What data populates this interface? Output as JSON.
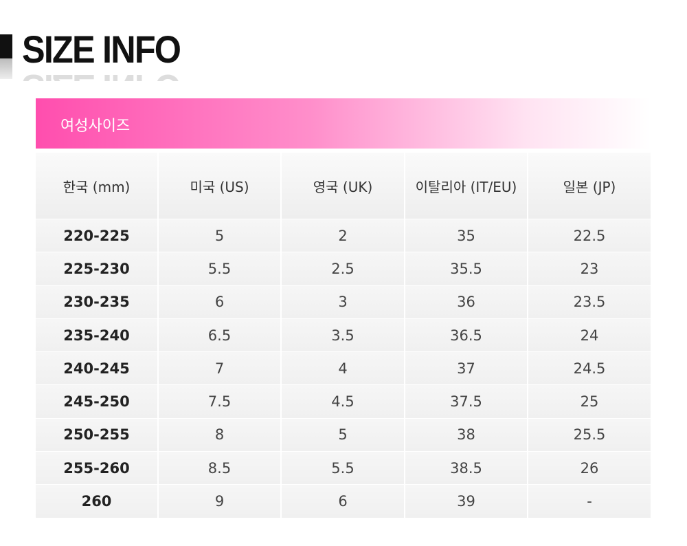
{
  "header": {
    "title": "SIZE INFO"
  },
  "table": {
    "caption": "여성사이즈",
    "columns": [
      "한국 (mm)",
      "미국 (US)",
      "영국 (UK)",
      "이탈리아 (IT/EU)",
      "일본 (JP)"
    ],
    "rows": [
      [
        "220-225",
        "5",
        "2",
        "35",
        "22.5"
      ],
      [
        "225-230",
        "5.5",
        "2.5",
        "35.5",
        "23"
      ],
      [
        "230-235",
        "6",
        "3",
        "36",
        "23.5"
      ],
      [
        "235-240",
        "6.5",
        "3.5",
        "36.5",
        "24"
      ],
      [
        "240-245",
        "7",
        "4",
        "37",
        "24.5"
      ],
      [
        "245-250",
        "7.5",
        "4.5",
        "37.5",
        "25"
      ],
      [
        "250-255",
        "8",
        "5",
        "38",
        "25.5"
      ],
      [
        "255-260",
        "8.5",
        "5.5",
        "38.5",
        "26"
      ],
      [
        "260",
        "9",
        "6",
        "39",
        "-"
      ]
    ]
  }
}
